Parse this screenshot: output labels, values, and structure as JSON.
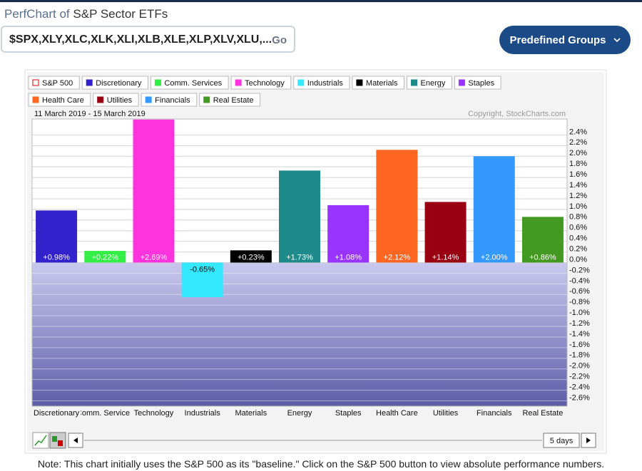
{
  "header": {
    "title_prefix": "PerfChart of",
    "title": "S&P Sector ETFs"
  },
  "search": {
    "symbols": "$SPX,XLY,XLC,XLK,XLI,XLB,XLE,XLP,XLV,XLU,...",
    "button": "Go"
  },
  "groups_button": "Predefined Groups",
  "chart_data": {
    "type": "bar",
    "date_range": "11 March 2019 - 15 March 2019",
    "copyright": "Copyright, StockCharts.com",
    "legend": [
      {
        "name": "S&P 500",
        "color": "#dd0000"
      },
      {
        "name": "Discretionary",
        "color": "#3322cc"
      },
      {
        "name": "Comm. Services",
        "color": "#33ee44"
      },
      {
        "name": "Technology",
        "color": "#ff33dd"
      },
      {
        "name": "Industrials",
        "color": "#33e8ff"
      },
      {
        "name": "Materials",
        "color": "#000000"
      },
      {
        "name": "Energy",
        "color": "#1e8a8a"
      },
      {
        "name": "Staples",
        "color": "#9933ff"
      },
      {
        "name": "Health Care",
        "color": "#ff6622"
      },
      {
        "name": "Utilities",
        "color": "#990011"
      },
      {
        "name": "Financials",
        "color": "#3399ff"
      },
      {
        "name": "Real Estate",
        "color": "#449922"
      }
    ],
    "categories": [
      "Discretionary",
      "Comm. Services",
      "Technology",
      "Industrials",
      "Materials",
      "Energy",
      "Staples",
      "Health Care",
      "Utilities",
      "Financials",
      "Real Estate"
    ],
    "values": [
      0.98,
      0.22,
      2.69,
      -0.65,
      0.23,
      1.73,
      1.08,
      2.12,
      1.14,
      2.0,
      0.86
    ],
    "value_labels": [
      "+0.98%",
      "+0.22%",
      "+2.69%",
      "-0.65%",
      "+0.23%",
      "+1.73%",
      "+1.08%",
      "+2.12%",
      "+1.14%",
      "+2.00%",
      "+0.86%"
    ],
    "colors": [
      "#3322cc",
      "#33ee44",
      "#ff33dd",
      "#33e8ff",
      "#000000",
      "#1e8a8a",
      "#9933ff",
      "#ff6622",
      "#990011",
      "#3399ff",
      "#449922"
    ],
    "ylim": [
      -2.7,
      2.7
    ],
    "yticks": [
      {
        "value": 2.4,
        "label": "2.4%"
      },
      {
        "value": 2.2,
        "label": "2.2%"
      },
      {
        "value": 2.0,
        "label": "2.0%"
      },
      {
        "value": 1.8,
        "label": "1.8%"
      },
      {
        "value": 1.6,
        "label": "1.6%"
      },
      {
        "value": 1.4,
        "label": "1.4%"
      },
      {
        "value": 1.2,
        "label": "1.2%"
      },
      {
        "value": 1.0,
        "label": "1.0%"
      },
      {
        "value": 0.8,
        "label": "0.8%"
      },
      {
        "value": 0.6,
        "label": "0.6%"
      },
      {
        "value": 0.4,
        "label": "0.4%"
      },
      {
        "value": 0.2,
        "label": "0.2%"
      },
      {
        "value": 0,
        "label": "0.0%"
      },
      {
        "value": -0.2,
        "label": "-0.2%"
      },
      {
        "value": -0.4,
        "label": "-0.4%"
      },
      {
        "value": -0.6,
        "label": "-0.6%"
      },
      {
        "value": -0.8,
        "label": "-0.8%"
      },
      {
        "value": -1.0,
        "label": "-1.0%"
      },
      {
        "value": -1.2,
        "label": "-1.2%"
      },
      {
        "value": -1.4,
        "label": "-1.4%"
      },
      {
        "value": -1.6,
        "label": "-1.6%"
      },
      {
        "value": -1.8,
        "label": "-1.8%"
      },
      {
        "value": -2.0,
        "label": "-2.0%"
      },
      {
        "value": -2.2,
        "label": "-2.2%"
      },
      {
        "value": -2.4,
        "label": "-2.4%"
      },
      {
        "value": -2.6,
        "label": "-2.6%"
      }
    ],
    "grid": true
  },
  "controls": {
    "period": "5 days"
  },
  "note": "Note: This chart initially uses the S&P 500 as its \"baseline.\" Click on the S&P 500 button to view absolute performance numbers."
}
